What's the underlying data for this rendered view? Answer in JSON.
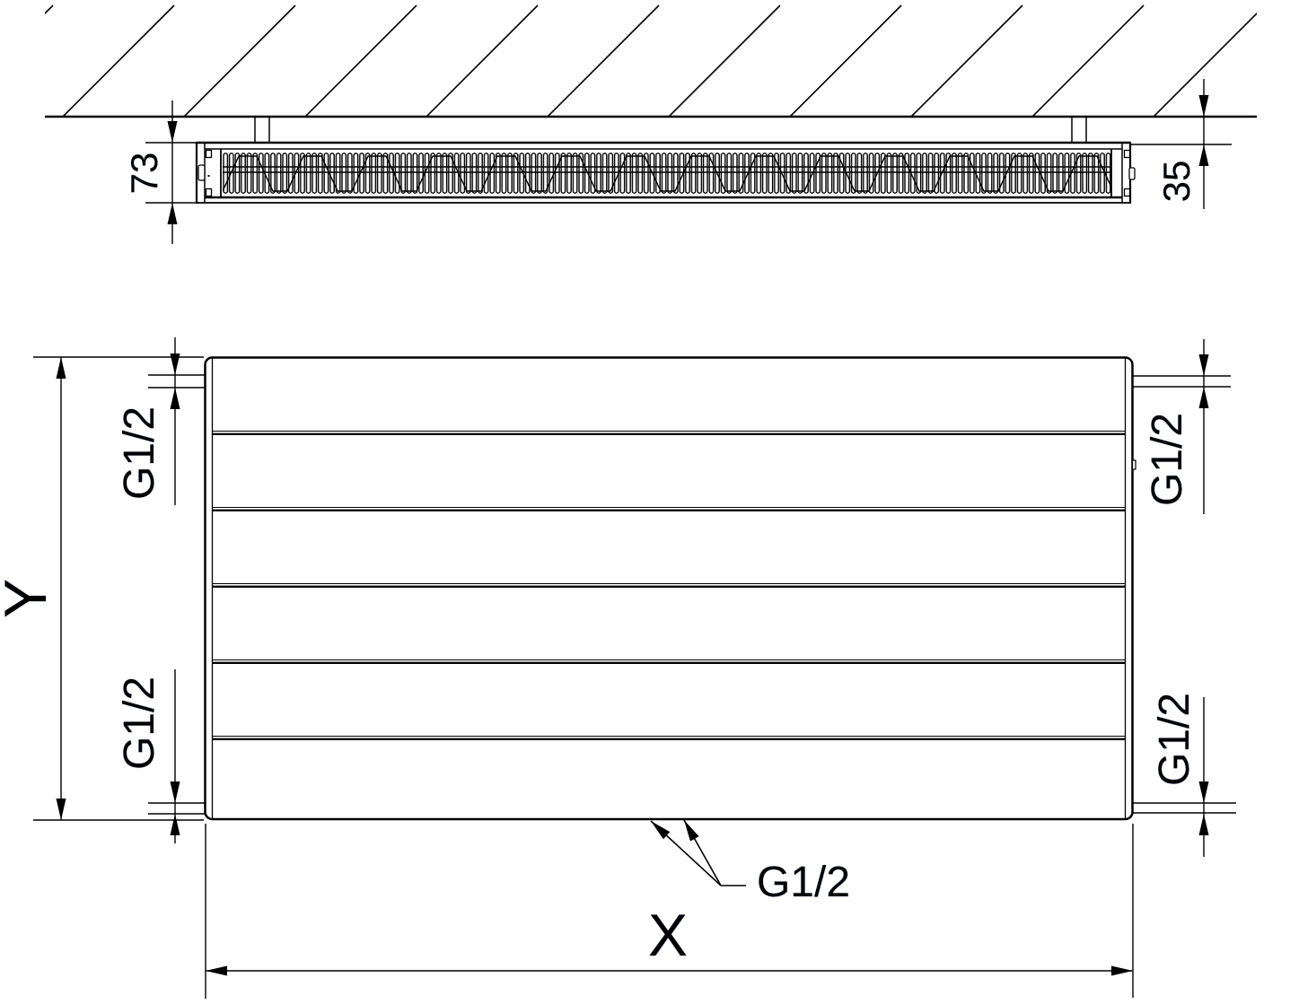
{
  "drawing": {
    "type": "radiator technical dimension drawing (top section view and front view)",
    "labels": {
      "depth": "73",
      "wall_distance": "35",
      "height": "Y",
      "width": "X",
      "thread_top_left": "G1/2",
      "thread_bottom_left": "G1/2",
      "thread_top_right": "G1/2",
      "thread_bottom_right": "G1/2",
      "thread_bottom_center": "G1/2"
    },
    "line_color": "#000000",
    "background_color": "#ffffff"
  }
}
